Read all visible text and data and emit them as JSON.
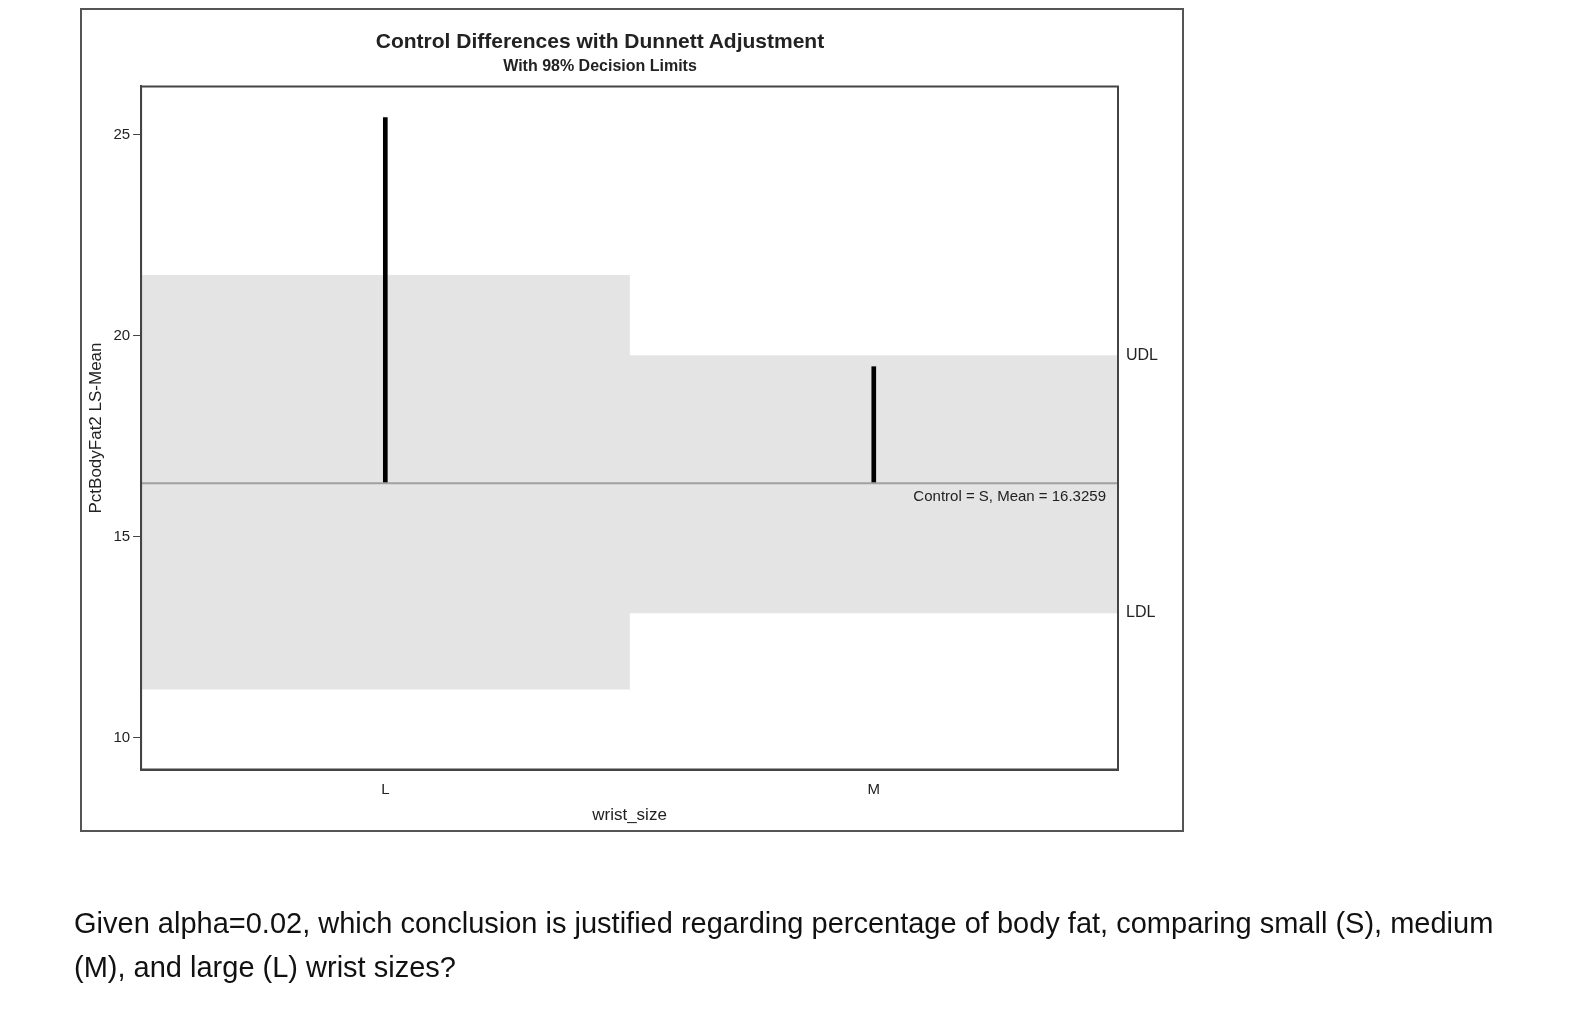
{
  "chart_data": {
    "type": "bar",
    "title": "Control Differences with Dunnett Adjustment",
    "subtitle": "With 98% Decision Limits",
    "xlabel": "wrist_size",
    "ylabel": "PctBodyFat2 LS-Mean",
    "categories": [
      "L",
      "M"
    ],
    "series": [
      {
        "color": "#e4e4e4",
        "base": [
          11.2,
          13.1
        ],
        "values": [
          10.3,
          6.4
        ]
      },
      {
        "color": "#000000",
        "base": [
          16.3259,
          16.3259
        ],
        "values": [
          9.1,
          2.9
        ]
      }
    ],
    "ref_lines": [
      {
        "axis": "y",
        "value": 16.3259,
        "label": "Control = S, Mean = 16.3259",
        "color": "#a0a0a0"
      }
    ],
    "ylim": [
      9.2,
      26.2
    ],
    "yticks": [
      10,
      15,
      20,
      25
    ],
    "grid": false,
    "legend": false,
    "annotations": [
      "UDL",
      "LDL",
      "Given alpha=0.02, which conclusion is justified regarding percentage of body fat, comparing small (S), medium (M), and large (L) wrist sizes?"
    ]
  }
}
